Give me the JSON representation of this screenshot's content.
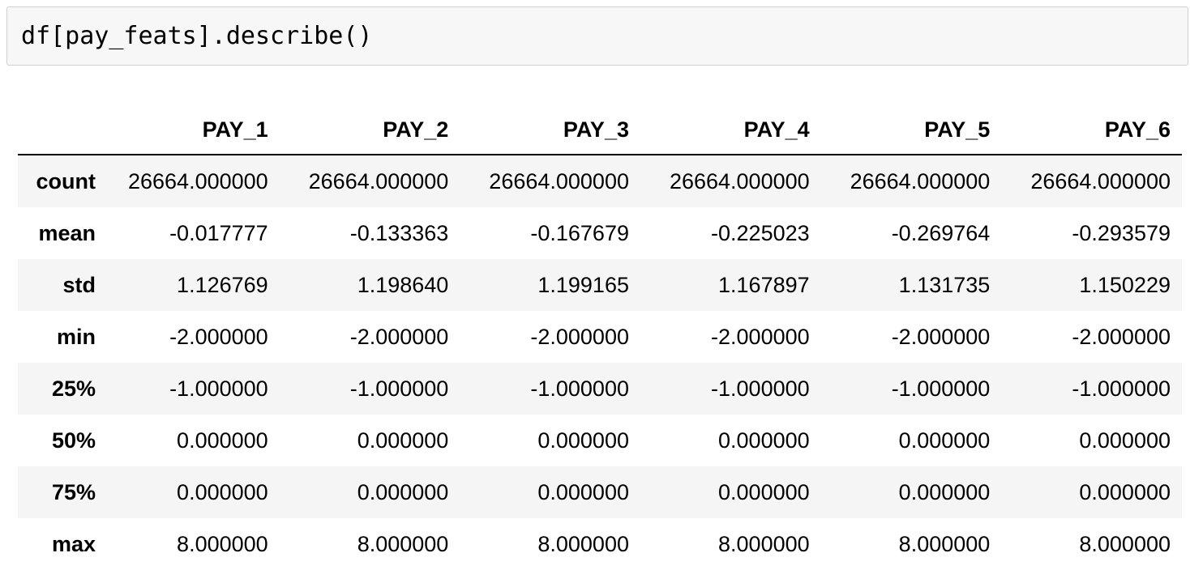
{
  "code_cell": {
    "source": "df[pay_feats].describe()"
  },
  "output_table": {
    "columns": [
      "",
      "PAY_1",
      "PAY_2",
      "PAY_3",
      "PAY_4",
      "PAY_5",
      "PAY_6"
    ],
    "rows": [
      {
        "index": "count",
        "values": [
          "26664.000000",
          "26664.000000",
          "26664.000000",
          "26664.000000",
          "26664.000000",
          "26664.000000"
        ]
      },
      {
        "index": "mean",
        "values": [
          "-0.017777",
          "-0.133363",
          "-0.167679",
          "-0.225023",
          "-0.269764",
          "-0.293579"
        ]
      },
      {
        "index": "std",
        "values": [
          "1.126769",
          "1.198640",
          "1.199165",
          "1.167897",
          "1.131735",
          "1.150229"
        ]
      },
      {
        "index": "min",
        "values": [
          "-2.000000",
          "-2.000000",
          "-2.000000",
          "-2.000000",
          "-2.000000",
          "-2.000000"
        ]
      },
      {
        "index": "25%",
        "values": [
          "-1.000000",
          "-1.000000",
          "-1.000000",
          "-1.000000",
          "-1.000000",
          "-1.000000"
        ]
      },
      {
        "index": "50%",
        "values": [
          "0.000000",
          "0.000000",
          "0.000000",
          "0.000000",
          "0.000000",
          "0.000000"
        ]
      },
      {
        "index": "75%",
        "values": [
          "0.000000",
          "0.000000",
          "0.000000",
          "0.000000",
          "0.000000",
          "0.000000"
        ]
      },
      {
        "index": "max",
        "values": [
          "8.000000",
          "8.000000",
          "8.000000",
          "8.000000",
          "8.000000",
          "8.000000"
        ]
      }
    ]
  },
  "colors": {
    "code_background": "#f7f7f7",
    "code_border": "#cfcfcf",
    "striped_row": "#f5f5f5",
    "header_rule": "#000000"
  }
}
